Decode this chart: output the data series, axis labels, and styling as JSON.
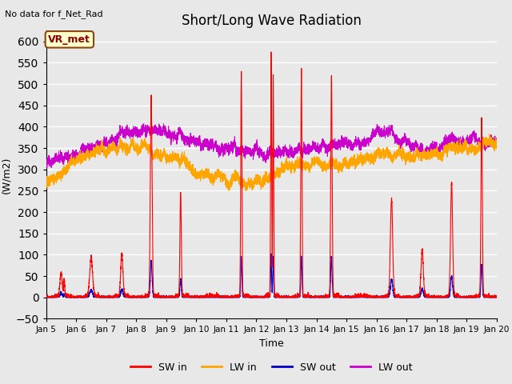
{
  "title": "Short/Long Wave Radiation",
  "xlabel": "Time",
  "ylabel": "(W/m2)",
  "top_left_text": "No data for f_Net_Rad",
  "legend_label_text": "VR_met",
  "ylim": [
    -50,
    625
  ],
  "yticks": [
    -50,
    0,
    50,
    100,
    150,
    200,
    250,
    300,
    350,
    400,
    450,
    500,
    550,
    600
  ],
  "xtick_labels": [
    "Jan 5",
    "Jan 6",
    "Jan 7",
    "Jan 8",
    "Jan 9",
    "Jan 10",
    "Jan 11",
    "Jan 12",
    "Jan 13",
    "Jan 14",
    "Jan 15",
    "Jan 16",
    "Jan 17",
    "Jan 18",
    "Jan 19",
    "Jan 20"
  ],
  "colors": {
    "SW_in": "#ff0000",
    "LW_in": "#ffa500",
    "SW_out": "#0000cd",
    "LW_out": "#cc00cc"
  },
  "legend": [
    {
      "label": "SW in",
      "color": "#ff0000"
    },
    {
      "label": "LW in",
      "color": "#ffa500"
    },
    {
      "label": "SW out",
      "color": "#0000cd"
    },
    {
      "label": "LW out",
      "color": "#cc00cc"
    }
  ],
  "background_color": "#e8e8e8",
  "plot_bg_color": "#e8e8e8",
  "grid_color": "#ffffff"
}
